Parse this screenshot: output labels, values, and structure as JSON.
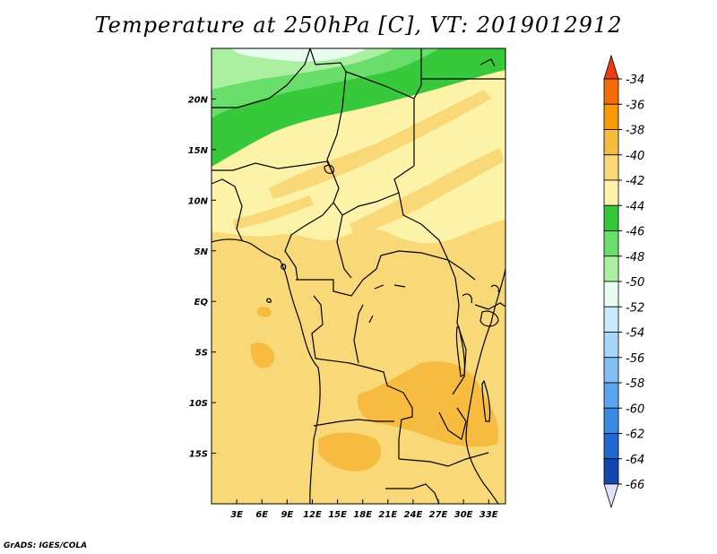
{
  "title": "Temperature at 250hPa [C], VT: 2019012912",
  "credit": "GrADS: IGES/COLA",
  "map": {
    "lon_range": [
      0,
      35
    ],
    "lat_range": [
      -20,
      25
    ],
    "x_ticks": [
      {
        "lon": 3,
        "label": "3E"
      },
      {
        "lon": 6,
        "label": "6E"
      },
      {
        "lon": 9,
        "label": "9E"
      },
      {
        "lon": 12,
        "label": "12E"
      },
      {
        "lon": 15,
        "label": "15E"
      },
      {
        "lon": 18,
        "label": "18E"
      },
      {
        "lon": 21,
        "label": "21E"
      },
      {
        "lon": 24,
        "label": "24E"
      },
      {
        "lon": 27,
        "label": "27E"
      },
      {
        "lon": 30,
        "label": "30E"
      },
      {
        "lon": 33,
        "label": "33E"
      }
    ],
    "y_ticks": [
      {
        "lat": 20,
        "label": "20N"
      },
      {
        "lat": 15,
        "label": "15N"
      },
      {
        "lat": 10,
        "label": "10N"
      },
      {
        "lat": 5,
        "label": "5N"
      },
      {
        "lat": 0,
        "label": "EQ"
      },
      {
        "lat": -5,
        "label": "5S"
      },
      {
        "lat": -10,
        "label": "10S"
      },
      {
        "lat": -15,
        "label": "15S"
      }
    ]
  },
  "colorbar": {
    "levels": [
      "-34",
      "-36",
      "-38",
      "-40",
      "-42",
      "-44",
      "-46",
      "-48",
      "-50",
      "-52",
      "-54",
      "-56",
      "-58",
      "-60",
      "-62",
      "-64",
      "-66"
    ],
    "colors": {
      "above_-34": "#f03c14",
      "-34_-36": "#f56a05",
      "-36_-38": "#f79a05",
      "-38_-40": "#f7bb40",
      "-40_-42": "#f9d878",
      "-42_-44": "#fdf3a8",
      "-44_-46": "#38c83c",
      "-46_-48": "#6ade6a",
      "-48_-50": "#aaf0a0",
      "-50_-52": "#e8fcf0",
      "-52_-54": "#c8e8fc",
      "-54_-56": "#a8d6f8",
      "-56_-58": "#82bef4",
      "-58_-60": "#5aa6ee",
      "-60_-62": "#3a8ae6",
      "-62_-64": "#2068d2",
      "-64_-66": "#1446b0",
      "below_-66": "#0a1464",
      "min_triangle": "#e0e0f8"
    }
  }
}
